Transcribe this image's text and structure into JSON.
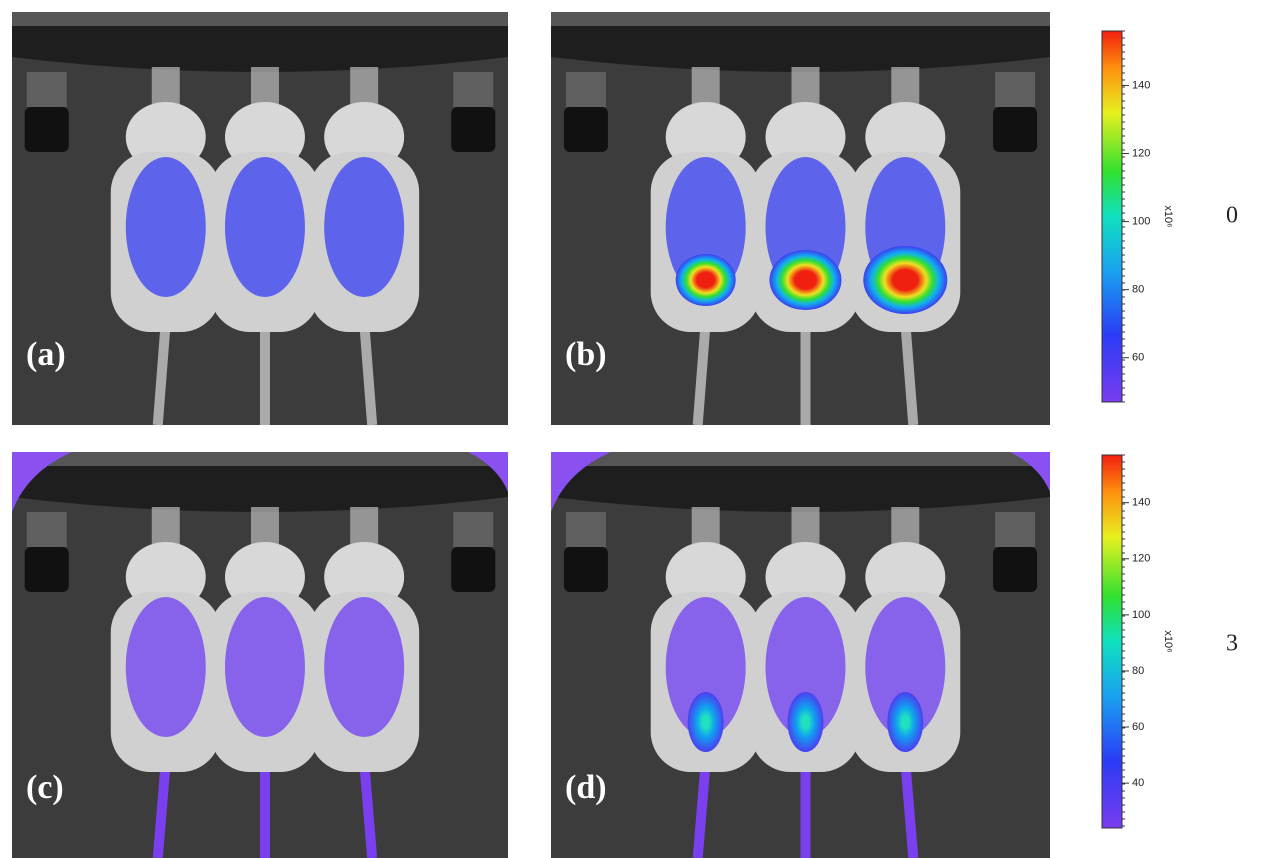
{
  "panels": [
    {
      "label": "(a)"
    },
    {
      "label": "(b)"
    },
    {
      "label": "(c)"
    },
    {
      "label": "(d)"
    }
  ],
  "colorbars": [
    {
      "lim": [
        47,
        156
      ],
      "ticks": [
        60,
        80,
        100,
        120,
        140
      ],
      "unit": "x10⁶",
      "row_label": "0"
    },
    {
      "lim": [
        24,
        157
      ],
      "ticks": [
        40,
        60,
        80,
        100,
        120,
        140
      ],
      "unit": "x10⁶",
      "row_label": "3"
    }
  ]
}
